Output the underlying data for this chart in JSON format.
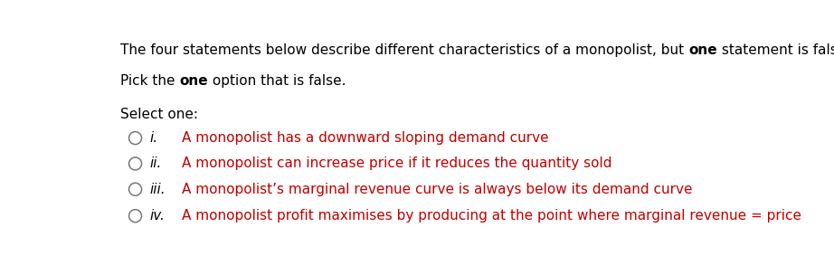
{
  "background_color": "#ffffff",
  "header_line1_parts": [
    {
      "text": "The four statements below describe different characteristics of a monopolist, but ",
      "bold": false,
      "color": "#000000"
    },
    {
      "text": "one",
      "bold": true,
      "color": "#000000"
    },
    {
      "text": " statement is false.",
      "bold": false,
      "color": "#000000"
    }
  ],
  "header_line2_parts": [
    {
      "text": "Pick the ",
      "bold": false,
      "color": "#000000"
    },
    {
      "text": "one",
      "bold": true,
      "color": "#000000"
    },
    {
      "text": " option that is false.",
      "bold": false,
      "color": "#000000"
    }
  ],
  "select_one_label": "Select one:",
  "options": [
    {
      "label": "i.",
      "parts": [
        {
          "text": "A monopolist has a downward sloping demand curve",
          "color": "#c00000"
        }
      ]
    },
    {
      "label": "ii.",
      "parts": [
        {
          "text": "A monopolist can increase price if it reduces the quantity sold",
          "color": "#c00000"
        }
      ]
    },
    {
      "label": "iii.",
      "parts": [
        {
          "text": "A monopolist’s marginal revenue curve is always below its demand curve",
          "color": "#c00000"
        }
      ]
    },
    {
      "label": "iv.",
      "parts": [
        {
          "text": "A monopolist profit maximises by producing at the point where marginal revenue = price",
          "color": "#c00000"
        }
      ]
    }
  ],
  "font_size": 11.0,
  "circle_color": "#777777",
  "text_color_black": "#000000",
  "text_color_red": "#c00000"
}
